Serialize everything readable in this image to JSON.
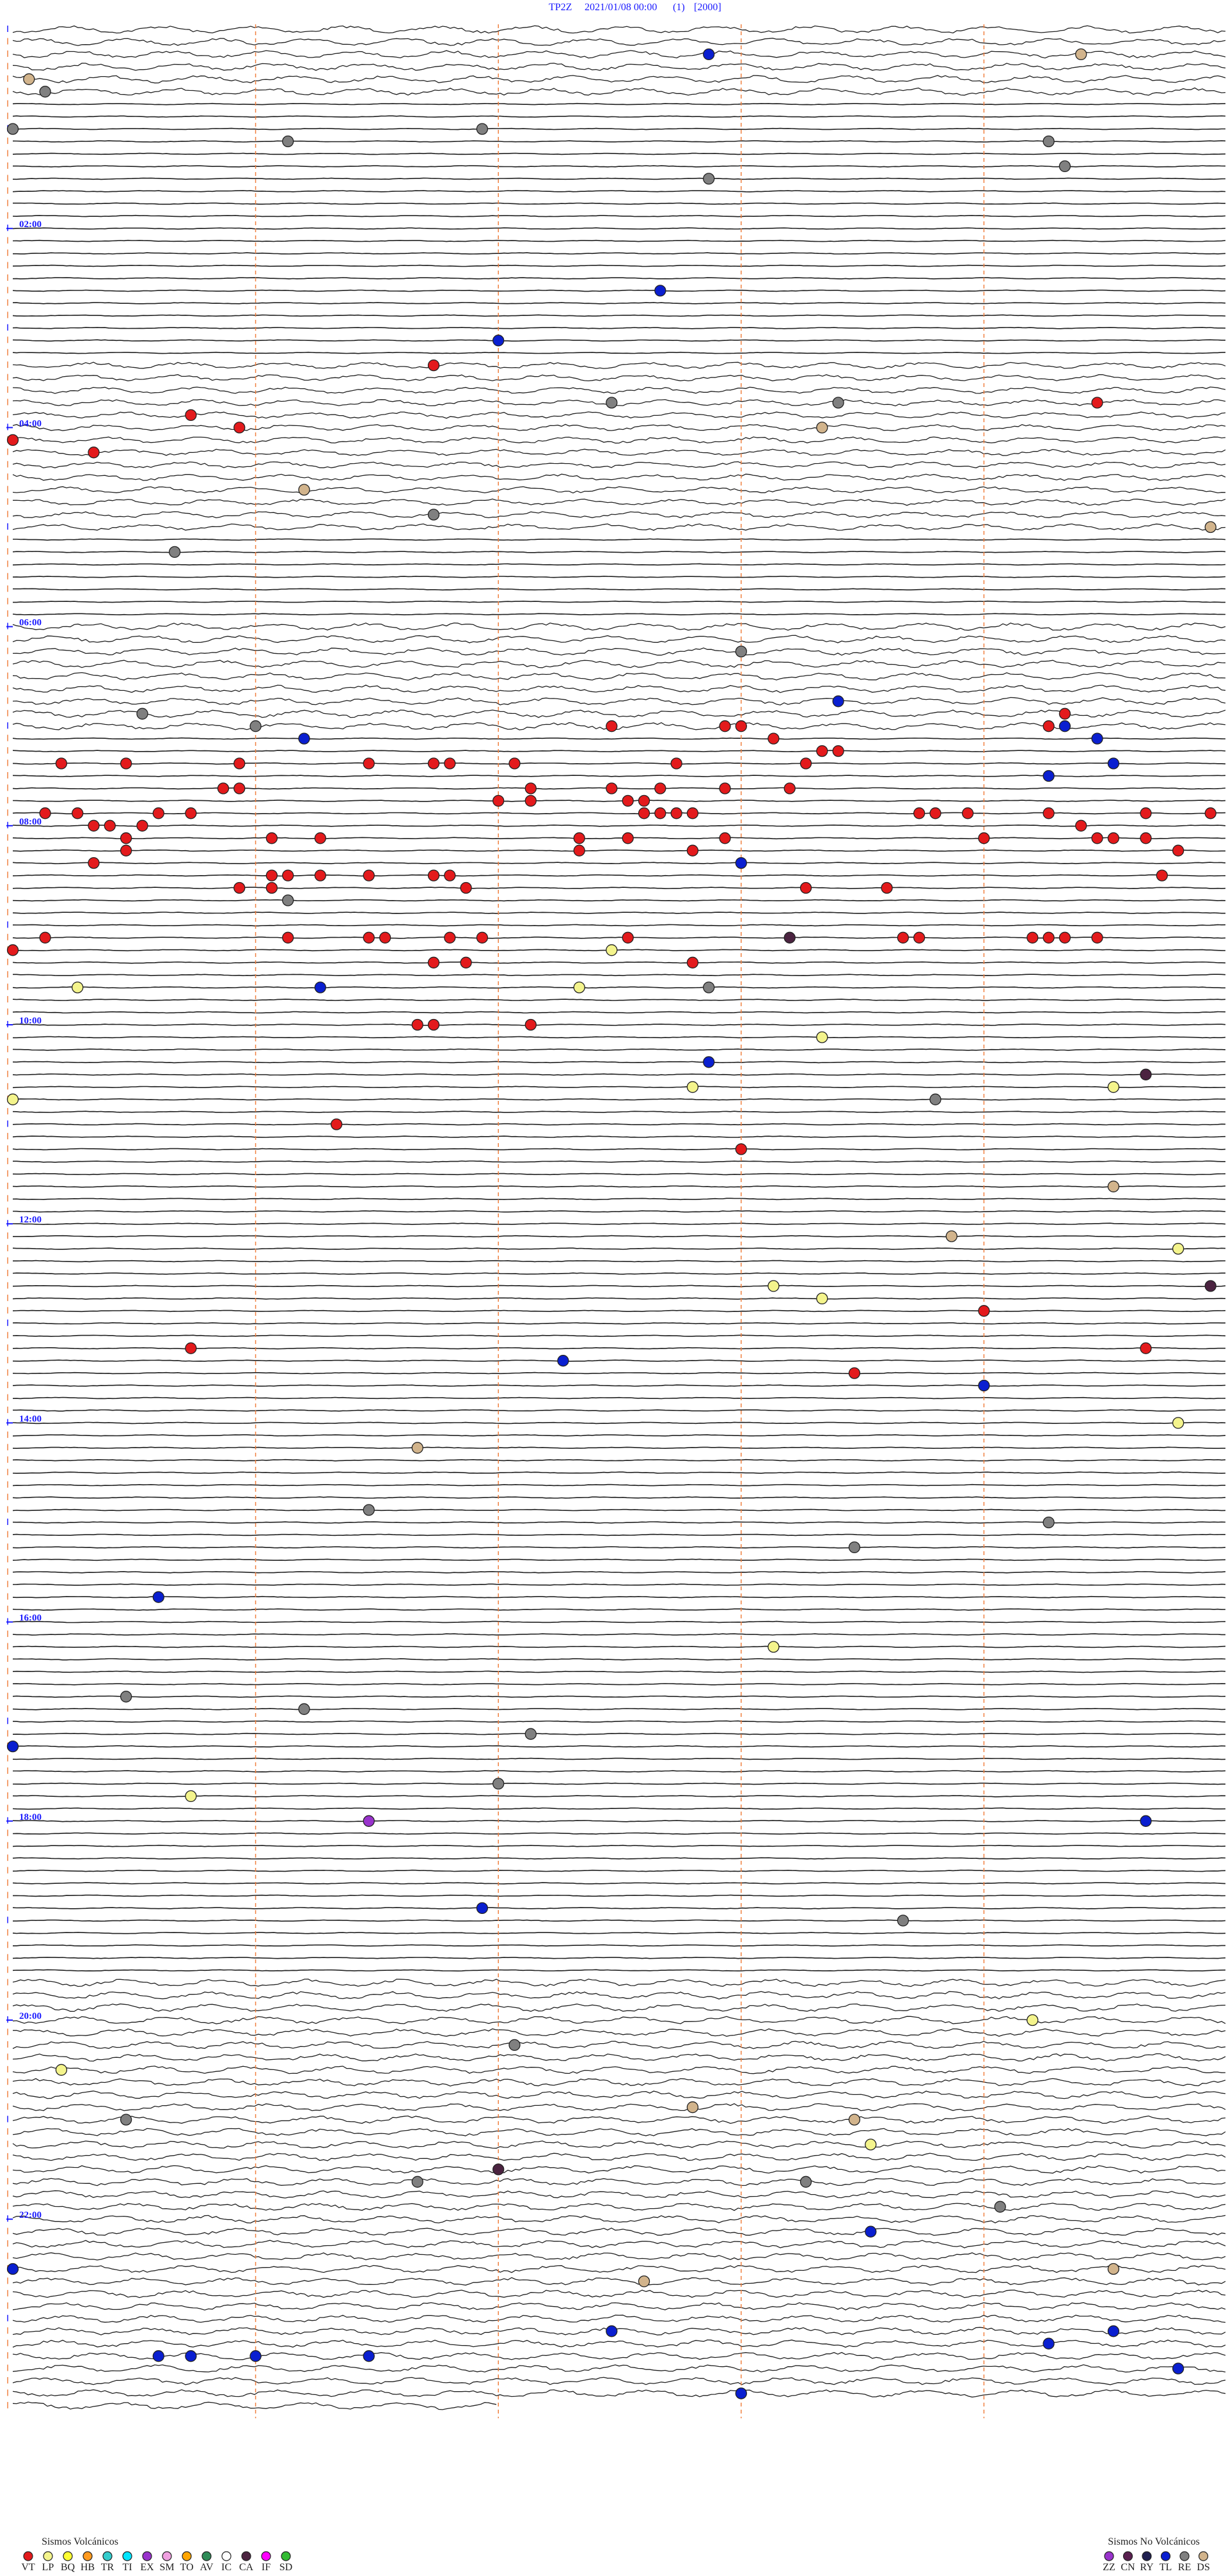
{
  "header": {
    "station": "TP2Z",
    "datetime": "2021/01/08 00:00",
    "channel": "(1)",
    "scale": "[2000]"
  },
  "hour_labels": [
    {
      "value": 120,
      "label": "02:00"
    },
    {
      "value": 240,
      "label": "04:00"
    },
    {
      "value": 360,
      "label": "06:00"
    },
    {
      "value": 480,
      "label": "08:00"
    },
    {
      "value": 600,
      "label": "10:00"
    },
    {
      "value": 720,
      "label": "12:00"
    },
    {
      "value": 840,
      "label": "14:00"
    },
    {
      "value": 960,
      "label": "16:00"
    },
    {
      "value": 1080,
      "label": "18:00"
    },
    {
      "value": 1200,
      "label": "20:00"
    },
    {
      "value": 1320,
      "label": "22:00"
    }
  ],
  "legend_volcanic": {
    "title": "Sismos Volcánicos",
    "items": [
      {
        "code": "VT",
        "color": "#e31a1c"
      },
      {
        "code": "LP",
        "color": "#f4f48c"
      },
      {
        "code": "BQ",
        "color": "#ffff33"
      },
      {
        "code": "HB",
        "color": "#ff9a1f"
      },
      {
        "code": "TR",
        "color": "#33cccc"
      },
      {
        "code": "TI",
        "color": "#00e5ff"
      },
      {
        "code": "EX",
        "color": "#9933cc"
      },
      {
        "code": "SM",
        "color": "#f0a0e0"
      },
      {
        "code": "TO",
        "color": "#ffa500"
      },
      {
        "code": "AV",
        "color": "#2e8b57"
      },
      {
        "code": "IC",
        "color": "#ffffff"
      },
      {
        "code": "CA",
        "color": "#4b2340"
      },
      {
        "code": "IF",
        "color": "#ff00ff"
      },
      {
        "code": "SD",
        "color": "#33bb33"
      }
    ]
  },
  "legend_nonvolcanic": {
    "title": "Sismos No Volcánicos",
    "items": [
      {
        "code": "ZZ",
        "color": "#9933cc"
      },
      {
        "code": "CN",
        "color": "#5a2050"
      },
      {
        "code": "RY",
        "color": "#202050"
      },
      {
        "code": "TL",
        "color": "#0a1fd0"
      },
      {
        "code": "RE",
        "color": "#808080"
      },
      {
        "code": "DS",
        "color": "#d2b48c"
      }
    ]
  },
  "events": [
    {
      "type": "TL",
      "minute": 19.3
    },
    {
      "type": "DS",
      "minute": 21.6
    },
    {
      "type": "DS",
      "minute": 30.1
    },
    {
      "type": "RE",
      "minute": 37.7
    },
    {
      "type": "RE",
      "minute": 60
    },
    {
      "type": "RE",
      "minute": 62.9
    },
    {
      "type": "RE",
      "minute": 69.2
    },
    {
      "type": "RE",
      "minute": 73.9
    },
    {
      "type": "RE",
      "minute": 89.0
    },
    {
      "type": "RE",
      "minute": 94.3
    },
    {
      "type": "TL",
      "minute": 161.5
    },
    {
      "type": "TL",
      "minute": 190.5
    },
    {
      "type": "VT",
      "minute": 205.1
    },
    {
      "type": "RE",
      "minute": 228.7
    },
    {
      "type": "RE",
      "minute": 230.1
    },
    {
      "type": "VT",
      "minute": 231.7
    },
    {
      "type": "VT",
      "minute": 233.6
    },
    {
      "type": "VT",
      "minute": 241.4
    },
    {
      "type": "DS",
      "minute": 245.0
    },
    {
      "type": "VT",
      "minute": 247.5
    },
    {
      "type": "VT",
      "minute": 255.5
    },
    {
      "type": "DS",
      "minute": 279.3
    },
    {
      "type": "RE",
      "minute": 295.1
    },
    {
      "type": "DS",
      "minute": 307.4
    },
    {
      "type": "RE",
      "minute": 316.0
    },
    {
      "type": "RE",
      "minute": 379.5
    },
    {
      "type": "TL",
      "minute": 410.1
    },
    {
      "type": "RE",
      "minute": 413.3
    },
    {
      "type": "RE",
      "minute": 421.5
    },
    {
      "type": "TL",
      "minute": 429.3
    },
    {
      "type": "VT",
      "minute": 423.7
    },
    {
      "type": "VT",
      "minute": 424.4
    },
    {
      "type": "VT",
      "minute": 424.5
    },
    {
      "type": "VT",
      "minute": 426.4
    },
    {
      "type": "TL",
      "minute": 426.5
    },
    {
      "type": "VT",
      "minute": 419.0
    },
    {
      "type": "VT",
      "minute": 432.2
    },
    {
      "type": "TL",
      "minute": 434.2
    },
    {
      "type": "VT",
      "minute": 442.8
    },
    {
      "type": "VT",
      "minute": 443.2
    },
    {
      "type": "VT",
      "minute": 443.9
    },
    {
      "type": "VT",
      "minute": 445.1
    },
    {
      "type": "VT",
      "minute": 445.2
    },
    {
      "type": "VT",
      "minute": 440.0
    },
    {
      "type": "VT",
      "minute": 440.1
    },
    {
      "type": "VT",
      "minute": 447.4
    },
    {
      "type": "TL",
      "minute": 449.3
    },
    {
      "type": "VT",
      "minute": 444.7
    },
    {
      "type": "VT",
      "minute": 445.6
    },
    {
      "type": "VT",
      "minute": 446.6
    },
    {
      "type": "VT",
      "minute": 458.8
    },
    {
      "type": "VT",
      "minute": 458.9
    },
    {
      "type": "VT",
      "minute": 460.7
    },
    {
      "type": "VT",
      "minute": 461.2
    },
    {
      "type": "VT",
      "minute": 461.5
    },
    {
      "type": "VT",
      "minute": 461.9
    },
    {
      "type": "VT",
      "minute": 462.3
    },
    {
      "type": "TL",
      "minute": 456.4
    },
    {
      "type": "VT",
      "minute": 468.8
    },
    {
      "type": "VT",
      "minute": 468.9
    },
    {
      "type": "VT",
      "minute": 468.0
    },
    {
      "type": "VT",
      "minute": 468.2
    },
    {
      "type": "VT",
      "minute": 472.7
    },
    {
      "type": "VT",
      "minute": 472.9
    },
    {
      "type": "VT",
      "minute": 473.4
    },
    {
      "type": "VT",
      "minute": 473.6
    },
    {
      "type": "VT",
      "minute": 476.4
    },
    {
      "type": "VT",
      "minute": 476.5
    },
    {
      "type": "VT",
      "minute": 476.6
    },
    {
      "type": "VT",
      "minute": 476.7
    },
    {
      "type": "VT",
      "minute": 478.1
    },
    {
      "type": "VT",
      "minute": 478.2
    },
    {
      "type": "VT",
      "minute": 478.4
    },
    {
      "type": "VT",
      "minute": 478.9
    },
    {
      "type": "VT",
      "minute": 479.5
    },
    {
      "type": "VT",
      "minute": 479.9
    },
    {
      "type": "VT",
      "minute": 480.5
    },
    {
      "type": "VT",
      "minute": 480.6
    },
    {
      "type": "VT",
      "minute": 480.8
    },
    {
      "type": "VT",
      "minute": 486.6
    },
    {
      "type": "VT",
      "minute": 491.9
    },
    {
      "type": "VT",
      "minute": 494.2
    },
    {
      "type": "VT",
      "minute": 494.3
    },
    {
      "type": "VT",
      "minute": 494.5
    },
    {
      "type": "VT",
      "minute": 488.2
    },
    {
      "type": "VT",
      "minute": 489.1
    },
    {
      "type": "VT",
      "minute": 491.0
    },
    {
      "type": "VT",
      "minute": 491.3
    },
    {
      "type": "VT",
      "minute": 495.7
    },
    {
      "type": "VT",
      "minute": 489.4
    },
    {
      "type": "VT",
      "minute": 498.5
    },
    {
      "type": "VT",
      "minute": 499.2
    },
    {
      "type": "VT",
      "minute": 493.5
    },
    {
      "type": "VT",
      "minute": 502.2
    },
    {
      "type": "TL",
      "minute": 507.0
    },
    {
      "type": "VT",
      "minute": 503.0
    },
    {
      "type": "VT",
      "minute": 517.1
    },
    {
      "type": "VT",
      "minute": 511.6
    },
    {
      "type": "VT",
      "minute": 511.7
    },
    {
      "type": "VT",
      "minute": 511.9
    },
    {
      "type": "VT",
      "minute": 512.2
    },
    {
      "type": "VT",
      "minute": 512.6
    },
    {
      "type": "VT",
      "minute": 512.7
    },
    {
      "type": "VT",
      "minute": 518.9
    },
    {
      "type": "VT",
      "minute": 519.1
    },
    {
      "type": "VT",
      "minute": 520.3
    },
    {
      "type": "VT",
      "minute": 522.4
    },
    {
      "type": "VT",
      "minute": 522.9
    },
    {
      "type": "RE",
      "minute": 526.7
    },
    {
      "type": "VT",
      "minute": 549.2
    },
    {
      "type": "VT",
      "minute": 549.7
    },
    {
      "type": "VT",
      "minute": 549.8
    },
    {
      "type": "VT",
      "minute": 550.4
    },
    {
      "type": "VT",
      "minute": 550.2
    },
    {
      "type": "CA",
      "minute": 552.3
    },
    {
      "type": "VT",
      "minute": 553.0
    },
    {
      "type": "VT",
      "minute": 553.1
    },
    {
      "type": "VT",
      "minute": 553.8
    },
    {
      "type": "VT",
      "minute": 553.9
    },
    {
      "type": "VT",
      "minute": 554.0
    },
    {
      "type": "VT",
      "minute": 554.2
    },
    {
      "type": "VT",
      "minute": 547.7
    },
    {
      "type": "VT",
      "minute": 555.0
    },
    {
      "type": "LP",
      "minute": 558.7
    },
    {
      "type": "VT",
      "minute": 551.3
    },
    {
      "type": "VT",
      "minute": 565.1
    },
    {
      "type": "VT",
      "minute": 565.3
    },
    {
      "type": "VT",
      "minute": 566.7
    },
    {
      "type": "TL",
      "minute": 579.4
    },
    {
      "type": "LP",
      "minute": 577.9
    },
    {
      "type": "LP",
      "minute": 581.0
    },
    {
      "type": "RE",
      "minute": 581.8
    },
    {
      "type": "VT",
      "minute": 602.5
    },
    {
      "type": "VT",
      "minute": 602.6
    },
    {
      "type": "VT",
      "minute": 603.2
    },
    {
      "type": "LP",
      "minute": 612.5
    },
    {
      "type": "TL",
      "minute": 626.8
    },
    {
      "type": "LP",
      "minute": 641.7
    },
    {
      "type": "LP",
      "minute": 644.3
    },
    {
      "type": "CA",
      "minute": 637.0
    },
    {
      "type": "LP",
      "minute": 645.0
    },
    {
      "type": "RE",
      "minute": 650.7
    },
    {
      "type": "VT",
      "minute": 662.0
    },
    {
      "type": "VT",
      "minute": 679.5
    },
    {
      "type": "DS",
      "minute": 704.3
    },
    {
      "type": "DS",
      "minute": 733.3
    },
    {
      "type": "LP",
      "minute": 742.2
    },
    {
      "type": "CA",
      "minute": 764.9
    },
    {
      "type": "LP",
      "minute": 762.2
    },
    {
      "type": "LP",
      "minute": 770.0
    },
    {
      "type": "VT",
      "minute": 778.5
    },
    {
      "type": "VT",
      "minute": 802.0
    },
    {
      "type": "VT",
      "minute": 796.1
    },
    {
      "type": "TL",
      "minute": 805.9
    },
    {
      "type": "VT",
      "minute": 815.2
    },
    {
      "type": "TL",
      "minute": 823.5
    },
    {
      "type": "LP",
      "minute": 847.2
    },
    {
      "type": "DS",
      "minute": 857.5
    },
    {
      "type": "RE",
      "minute": 894.7
    },
    {
      "type": "RE",
      "minute": 906.4
    },
    {
      "type": "RE",
      "minute": 920.2
    },
    {
      "type": "TL",
      "minute": 945.9
    },
    {
      "type": "LP",
      "minute": 979.7
    },
    {
      "type": "RE",
      "minute": 1005.7
    },
    {
      "type": "RE",
      "minute": 1014.3
    },
    {
      "type": "RE",
      "minute": 1030.7
    },
    {
      "type": "TL",
      "minute": 1035.0
    },
    {
      "type": "RE",
      "minute": 1060.5
    },
    {
      "type": "LP",
      "minute": 1066.1
    },
    {
      "type": "EX",
      "minute": 1082.2
    },
    {
      "type": "TL",
      "minute": 1087.0
    },
    {
      "type": "TL",
      "minute": 1135.4
    },
    {
      "type": "RE",
      "minute": 1145.5
    },
    {
      "type": "LP",
      "minute": 1206.3
    },
    {
      "type": "RE",
      "minute": 1218.1
    },
    {
      "type": "LP",
      "minute": 1230.3
    },
    {
      "type": "DS",
      "minute": 1256.7
    },
    {
      "type": "RE",
      "minute": 1260.7
    },
    {
      "type": "DS",
      "minute": 1265.2
    },
    {
      "type": "LP",
      "minute": 1280.3
    },
    {
      "type": "CA",
      "minute": 1293.0
    },
    {
      "type": "RE",
      "minute": 1302.4
    },
    {
      "type": "RE",
      "minute": 1300.0
    },
    {
      "type": "RE",
      "minute": 1318.6
    },
    {
      "type": "TL",
      "minute": 1332.8
    },
    {
      "type": "TL",
      "minute": 1350
    },
    {
      "type": "DS",
      "minute": 1361.4
    },
    {
      "type": "DS",
      "minute": 1356.8
    },
    {
      "type": "TL",
      "minute": 1391.2
    },
    {
      "type": "TL",
      "minute": 1394.3
    },
    {
      "type": "TL",
      "minute": 1401.4
    },
    {
      "type": "TL",
      "minute": 1403.4
    },
    {
      "type": "TL",
      "minute": 1404.0
    },
    {
      "type": "TL",
      "minute": 1404.7
    },
    {
      "type": "TL",
      "minute": 1403.6
    },
    {
      "type": "TL",
      "minute": 1417.2
    },
    {
      "type": "TL",
      "minute": 1429.5
    }
  ]
}
